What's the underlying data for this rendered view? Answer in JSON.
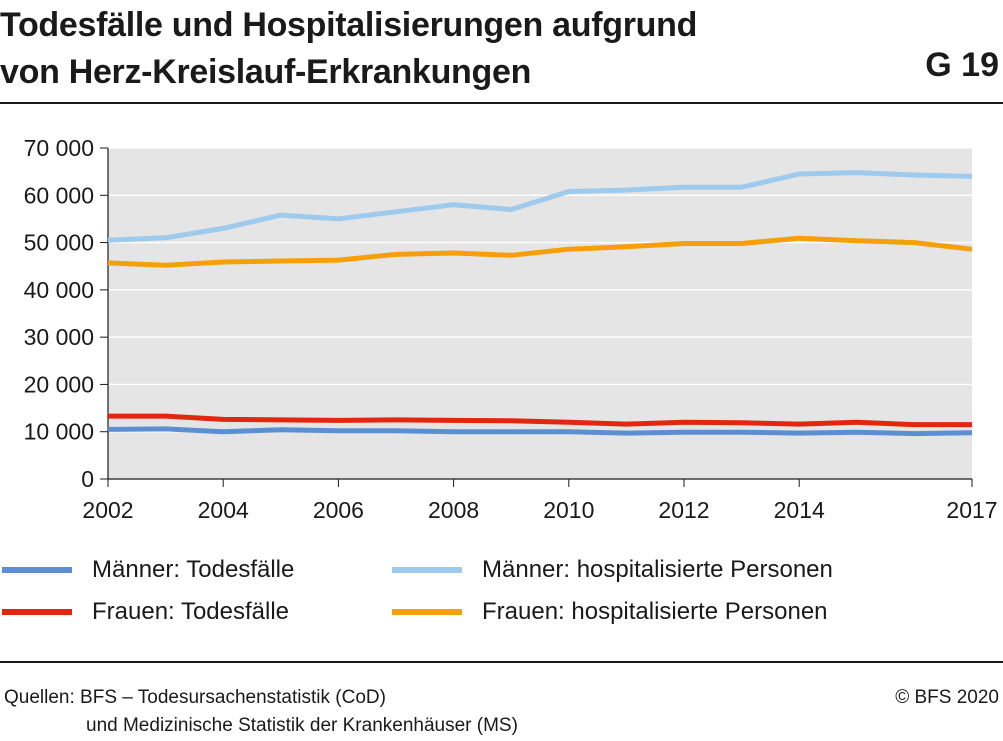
{
  "header": {
    "title_line1": "Todesfälle und Hospitalisierungen aufgrund",
    "title_line2": "von Herz-Kreislauf-Erkrankungen",
    "code": "G 19"
  },
  "chart_data": {
    "type": "line",
    "title": "Todesfälle und Hospitalisierungen aufgrund von Herz-Kreislauf-Erkrankungen",
    "x": [
      2002,
      2003,
      2004,
      2005,
      2006,
      2007,
      2008,
      2009,
      2010,
      2011,
      2012,
      2013,
      2014,
      2015,
      2016,
      2017
    ],
    "x_ticks": [
      2002,
      2004,
      2006,
      2008,
      2010,
      2012,
      2014,
      2017
    ],
    "x_tick_labels": [
      "2002",
      "2004",
      "2006",
      "2008",
      "2010",
      "2012",
      "2014",
      "2017"
    ],
    "xlim": [
      2002,
      2017
    ],
    "ylim": [
      0,
      70000
    ],
    "y_ticks": [
      0,
      10000,
      20000,
      30000,
      40000,
      50000,
      60000,
      70000
    ],
    "y_tick_labels": [
      "0",
      "10 000",
      "20 000",
      "30 000",
      "40 000",
      "50 000",
      "60 000",
      "70 000"
    ],
    "xlabel": "",
    "ylabel": "",
    "grid": true,
    "legend_position": "bottom",
    "background": "#e5e5e5",
    "series": [
      {
        "name": "Männer: hospitalisierte Personen",
        "color": "#9ecaee",
        "values": [
          50500,
          51000,
          53000,
          55800,
          55000,
          56500,
          58000,
          57000,
          60800,
          61100,
          61700,
          61700,
          64500,
          64800,
          64300,
          64000
        ]
      },
      {
        "name": "Frauen: hospitalisierte Personen",
        "color": "#f5a00a",
        "values": [
          45700,
          45200,
          45900,
          46100,
          46300,
          47500,
          47800,
          47300,
          48600,
          49100,
          49800,
          49800,
          50900,
          50400,
          50000,
          48600
        ]
      },
      {
        "name": "Frauen: Todesfälle",
        "color": "#e3260f",
        "values": [
          13300,
          13300,
          12600,
          12500,
          12400,
          12500,
          12400,
          12300,
          12000,
          11600,
          12000,
          11900,
          11600,
          12000,
          11500,
          11500
        ]
      },
      {
        "name": "Männer: Todesfälle",
        "color": "#5b8fd2",
        "values": [
          10500,
          10600,
          10000,
          10400,
          10200,
          10200,
          10000,
          10000,
          10000,
          9700,
          9900,
          9900,
          9700,
          9900,
          9600,
          9800
        ]
      }
    ]
  },
  "legend": {
    "items": [
      {
        "label": "Männer: Todesfälle",
        "color": "#5b8fd2"
      },
      {
        "label": "Männer: hospitalisierte Personen",
        "color": "#9ecaee"
      },
      {
        "label": "Frauen: Todesfälle",
        "color": "#e3260f"
      },
      {
        "label": "Frauen: hospitalisierte Personen",
        "color": "#f5a00a"
      }
    ]
  },
  "footer": {
    "source_line1": "Quellen: BFS – Todesursachenstatistik (CoD)",
    "source_line2": "und Medizinische Statistik der Krankenhäuser (MS)",
    "copyright": "© BFS 2020"
  }
}
